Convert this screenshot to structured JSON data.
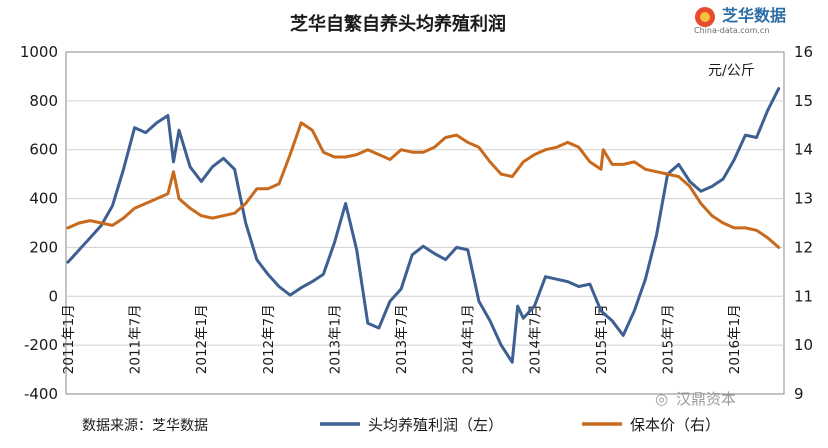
{
  "logo": {
    "name": "芝华数据",
    "url_text": "China-data.com.cn"
  },
  "source_note": "数据来源：芝华数据",
  "watermark": "汉鼎资本",
  "chart_data": {
    "type": "line",
    "title": "芝华自繁自养头均养殖利润",
    "unit_label": "元/公斤",
    "x_tick_labels": [
      "2011年1月",
      "2011年7月",
      "2012年1月",
      "2012年7月",
      "2013年1月",
      "2013年7月",
      "2014年1月",
      "2014年7月",
      "2015年1月",
      "2015年7月",
      "2016年1月"
    ],
    "left_axis": {
      "min": -400,
      "max": 1000,
      "ticks": [
        "-400",
        "-200",
        "0",
        "200",
        "400",
        "600",
        "800",
        "1000"
      ]
    },
    "right_axis": {
      "min": 9,
      "max": 16,
      "ticks": [
        "9",
        "10",
        "11",
        "12",
        "13",
        "14",
        "15",
        "16"
      ]
    },
    "legend_position": "bottom",
    "grid": true,
    "series": [
      {
        "name": "头均养殖利润（左）",
        "axis": "left",
        "color": "#3d5f92",
        "points": [
          [
            "2011-01",
            140
          ],
          [
            "2011-02",
            190
          ],
          [
            "2011-03",
            240
          ],
          [
            "2011-04",
            290
          ],
          [
            "2011-05",
            370
          ],
          [
            "2011-06",
            520
          ],
          [
            "2011-07",
            690
          ],
          [
            "2011-08",
            670
          ],
          [
            "2011-09",
            710
          ],
          [
            "2011-10",
            740
          ],
          [
            "2011-10.5",
            550
          ],
          [
            "2011-11",
            680
          ],
          [
            "2011-12",
            530
          ],
          [
            "2012-01",
            470
          ],
          [
            "2012-02",
            530
          ],
          [
            "2012-03",
            565
          ],
          [
            "2012-04",
            520
          ],
          [
            "2012-05",
            300
          ],
          [
            "2012-06",
            150
          ],
          [
            "2012-07",
            90
          ],
          [
            "2012-08",
            40
          ],
          [
            "2012-09",
            5
          ],
          [
            "2012-10",
            35
          ],
          [
            "2012-11",
            60
          ],
          [
            "2012-12",
            90
          ],
          [
            "2013-01",
            220
          ],
          [
            "2013-02",
            380
          ],
          [
            "2013-03",
            190
          ],
          [
            "2013-04",
            -110
          ],
          [
            "2013-05",
            -130
          ],
          [
            "2013-06",
            -20
          ],
          [
            "2013-07",
            30
          ],
          [
            "2013-08",
            170
          ],
          [
            "2013-09",
            205
          ],
          [
            "2013-10",
            175
          ],
          [
            "2013-11",
            150
          ],
          [
            "2013-12",
            200
          ],
          [
            "2014-01",
            190
          ],
          [
            "2014-02",
            -20
          ],
          [
            "2014-03",
            -100
          ],
          [
            "2014-04",
            -200
          ],
          [
            "2014-05",
            -270
          ],
          [
            "2014-05.5",
            -40
          ],
          [
            "2014-06",
            -90
          ],
          [
            "2014-07",
            -40
          ],
          [
            "2014-08",
            80
          ],
          [
            "2014-09",
            70
          ],
          [
            "2014-10",
            60
          ],
          [
            "2014-11",
            40
          ],
          [
            "2014-12",
            50
          ],
          [
            "2015-01",
            -60
          ],
          [
            "2015-02",
            -100
          ],
          [
            "2015-03",
            -160
          ],
          [
            "2015-04",
            -60
          ],
          [
            "2015-05",
            70
          ],
          [
            "2015-06",
            250
          ],
          [
            "2015-07",
            500
          ],
          [
            "2015-08",
            540
          ],
          [
            "2015-09",
            470
          ],
          [
            "2015-10",
            430
          ],
          [
            "2015-11",
            450
          ],
          [
            "2015-12",
            480
          ],
          [
            "2016-01",
            560
          ],
          [
            "2016-02",
            660
          ],
          [
            "2016-03",
            650
          ],
          [
            "2016-04",
            760
          ],
          [
            "2016-05",
            850
          ]
        ]
      },
      {
        "name": "保本价（右）",
        "axis": "right",
        "color": "#c8691c",
        "points": [
          [
            "2011-01",
            12.4
          ],
          [
            "2011-02",
            12.5
          ],
          [
            "2011-03",
            12.55
          ],
          [
            "2011-04",
            12.5
          ],
          [
            "2011-05",
            12.45
          ],
          [
            "2011-06",
            12.6
          ],
          [
            "2011-07",
            12.8
          ],
          [
            "2011-08",
            12.9
          ],
          [
            "2011-09",
            13.0
          ],
          [
            "2011-10",
            13.1
          ],
          [
            "2011-10.5",
            13.55
          ],
          [
            "2011-11",
            13.0
          ],
          [
            "2011-12",
            12.8
          ],
          [
            "2012-01",
            12.65
          ],
          [
            "2012-02",
            12.6
          ],
          [
            "2012-03",
            12.65
          ],
          [
            "2012-04",
            12.7
          ],
          [
            "2012-05",
            12.9
          ],
          [
            "2012-06",
            13.2
          ],
          [
            "2012-07",
            13.2
          ],
          [
            "2012-08",
            13.3
          ],
          [
            "2012-09",
            13.9
          ],
          [
            "2012-10",
            14.55
          ],
          [
            "2012-11",
            14.4
          ],
          [
            "2012-12",
            13.95
          ],
          [
            "2013-01",
            13.85
          ],
          [
            "2013-02",
            13.85
          ],
          [
            "2013-03",
            13.9
          ],
          [
            "2013-04",
            14.0
          ],
          [
            "2013-05",
            13.9
          ],
          [
            "2013-06",
            13.8
          ],
          [
            "2013-07",
            14.0
          ],
          [
            "2013-08",
            13.95
          ],
          [
            "2013-09",
            13.95
          ],
          [
            "2013-10",
            14.05
          ],
          [
            "2013-11",
            14.25
          ],
          [
            "2013-12",
            14.3
          ],
          [
            "2014-01",
            14.15
          ],
          [
            "2014-02",
            14.05
          ],
          [
            "2014-03",
            13.75
          ],
          [
            "2014-04",
            13.5
          ],
          [
            "2014-05",
            13.45
          ],
          [
            "2014-05.5",
            13.6
          ],
          [
            "2014-06",
            13.75
          ],
          [
            "2014-07",
            13.9
          ],
          [
            "2014-08",
            14.0
          ],
          [
            "2014-09",
            14.05
          ],
          [
            "2014-10",
            14.15
          ],
          [
            "2014-11",
            14.05
          ],
          [
            "2014-12",
            13.75
          ],
          [
            "2015-01",
            13.6
          ],
          [
            "2015-01.2",
            14.0
          ],
          [
            "2015-02",
            13.7
          ],
          [
            "2015-03",
            13.7
          ],
          [
            "2015-04",
            13.75
          ],
          [
            "2015-05",
            13.6
          ],
          [
            "2015-06",
            13.55
          ],
          [
            "2015-07",
            13.5
          ],
          [
            "2015-08",
            13.45
          ],
          [
            "2015-09",
            13.25
          ],
          [
            "2015-10",
            12.9
          ],
          [
            "2015-11",
            12.65
          ],
          [
            "2015-12",
            12.5
          ],
          [
            "2016-01",
            12.4
          ],
          [
            "2016-02",
            12.4
          ],
          [
            "2016-03",
            12.35
          ],
          [
            "2016-04",
            12.2
          ],
          [
            "2016-05",
            12.0
          ]
        ]
      }
    ]
  }
}
